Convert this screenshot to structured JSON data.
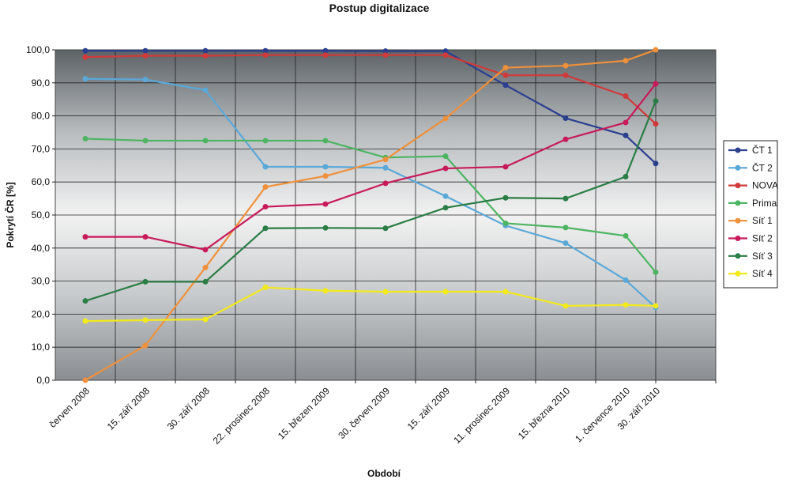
{
  "chart_data": {
    "type": "line",
    "title": "Postup digitalizace",
    "xlabel": "Období",
    "ylabel": "Pokrytí ČR [%]",
    "ylim": [
      0,
      100
    ],
    "yticks": [
      "0,0",
      "10,0",
      "20,0",
      "30,0",
      "40,0",
      "50,0",
      "60,0",
      "70,0",
      "80,0",
      "90,0",
      "100,0"
    ],
    "categories": [
      "červen 2008",
      "15. září 2008",
      "30. září 2008",
      "22. prosinec 2008",
      "15. březen 2009",
      "30. červen 2009",
      "15. září 2009",
      "11. prosinec 2009",
      "15. března 2010",
      "1. července 2010",
      "30. září 2010"
    ],
    "x_positions": [
      0.0,
      1.0,
      2.0,
      3.0,
      4.0,
      5.0,
      6.0,
      7.0,
      8.0,
      9.0,
      9.5
    ],
    "grid": true,
    "legend_position": "right",
    "series": [
      {
        "name": "ČT 1",
        "color": "#2b3f8f",
        "values": [
          99.7,
          99.7,
          99.7,
          99.7,
          99.7,
          99.6,
          99.6,
          89.3,
          79.3,
          74.1,
          65.6
        ]
      },
      {
        "name": "ČT 2",
        "color": "#5aa8d8",
        "values": [
          91.2,
          91.0,
          87.8,
          64.6,
          64.6,
          64.3,
          55.7,
          46.8,
          41.5,
          30.3,
          22.0
        ]
      },
      {
        "name": "NOVA",
        "color": "#d03a3a",
        "values": [
          97.8,
          98.2,
          98.2,
          98.4,
          98.4,
          98.4,
          98.4,
          92.3,
          92.3,
          86.0,
          77.6
        ]
      },
      {
        "name": "Prima",
        "color": "#4db562",
        "values": [
          73.1,
          72.5,
          72.5,
          72.5,
          72.5,
          67.4,
          67.8,
          47.5,
          46.2,
          43.7,
          32.7
        ]
      },
      {
        "name": "Síť 1",
        "color": "#f0903a",
        "values": [
          0.0,
          10.5,
          34.1,
          58.5,
          61.8,
          66.8,
          79.2,
          94.6,
          95.2,
          96.7,
          100.0
        ]
      },
      {
        "name": "Síť 2",
        "color": "#c81a5a",
        "values": [
          43.4,
          43.4,
          39.5,
          52.5,
          53.3,
          59.6,
          64.1,
          64.6,
          72.9,
          78.0,
          89.7
        ]
      },
      {
        "name": "Síť 3",
        "color": "#2a7d45",
        "values": [
          24.0,
          29.8,
          29.8,
          46.0,
          46.1,
          46.0,
          52.2,
          55.2,
          55.0,
          61.6,
          84.5
        ]
      },
      {
        "name": "Síť 4",
        "color": "#f2ea1a",
        "values": [
          17.9,
          18.2,
          18.4,
          28.1,
          27.1,
          26.8,
          26.8,
          26.8,
          22.5,
          22.8,
          22.5
        ]
      }
    ]
  }
}
